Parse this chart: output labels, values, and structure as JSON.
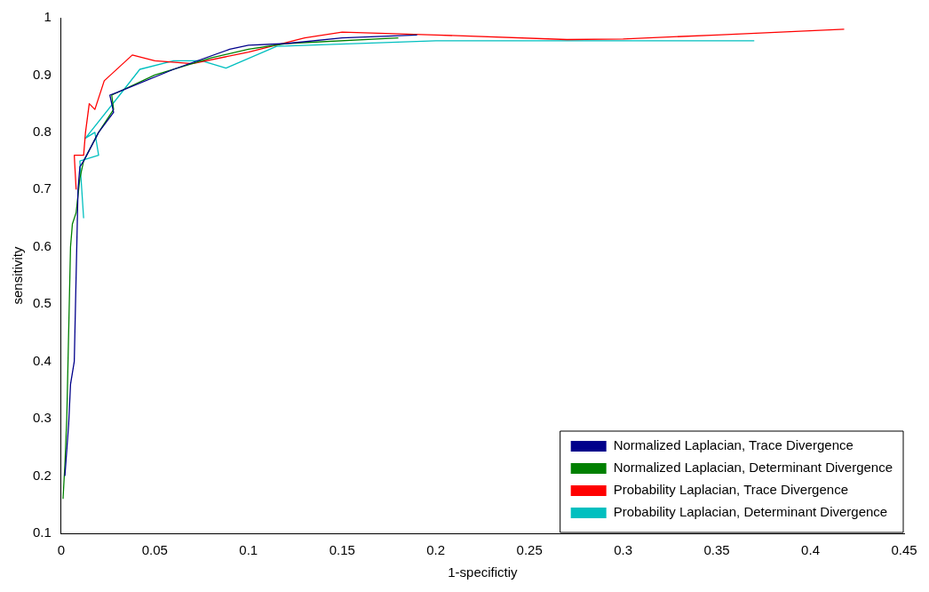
{
  "chart_data": {
    "type": "line",
    "xlabel": "1-specifictiy",
    "ylabel": "sensitivity",
    "xlim": [
      0,
      0.45
    ],
    "ylim": [
      0.1,
      1
    ],
    "xticks": [
      0,
      0.05,
      0.1,
      0.15,
      0.2,
      0.25,
      0.3,
      0.35,
      0.4,
      0.45
    ],
    "yticks": [
      0.1,
      0.2,
      0.3,
      0.4,
      0.5,
      0.6,
      0.7,
      0.8,
      0.9,
      1
    ],
    "grid": false,
    "legend": "bottom right",
    "marker": "none",
    "line_style": "solid",
    "series": [
      {
        "name": "Normalized Laplacian, Trace Divergence",
        "color": "#00008b",
        "x": [
          0.002,
          0.004,
          0.005,
          0.007,
          0.009,
          0.01,
          0.012,
          0.02,
          0.028,
          0.026,
          0.03,
          0.06,
          0.09,
          0.1,
          0.12,
          0.15,
          0.19
        ],
        "values": [
          0.2,
          0.29,
          0.36,
          0.4,
          0.7,
          0.74,
          0.75,
          0.8,
          0.835,
          0.865,
          0.87,
          0.91,
          0.945,
          0.952,
          0.955,
          0.965,
          0.97
        ]
      },
      {
        "name": "Normalized Laplacian, Determinant Divergence",
        "color": "#008000",
        "x": [
          0.001,
          0.002,
          0.003,
          0.004,
          0.005,
          0.006,
          0.008,
          0.01,
          0.012,
          0.02,
          0.028,
          0.027,
          0.05,
          0.08,
          0.1,
          0.12,
          0.18
        ],
        "values": [
          0.16,
          0.22,
          0.3,
          0.45,
          0.6,
          0.64,
          0.66,
          0.72,
          0.75,
          0.8,
          0.84,
          0.865,
          0.9,
          0.93,
          0.945,
          0.955,
          0.965
        ]
      },
      {
        "name": "Probability Laplacian, Trace Divergence",
        "color": "#ff0000",
        "x": [
          0.008,
          0.007,
          0.012,
          0.013,
          0.015,
          0.018,
          0.023,
          0.038,
          0.05,
          0.07,
          0.1,
          0.13,
          0.15,
          0.2,
          0.27,
          0.3,
          0.35,
          0.418
        ],
        "values": [
          0.7,
          0.76,
          0.76,
          0.8,
          0.85,
          0.84,
          0.89,
          0.935,
          0.925,
          0.92,
          0.94,
          0.965,
          0.975,
          0.97,
          0.962,
          0.963,
          0.97,
          0.98
        ]
      },
      {
        "name": "Probability Laplacian, Determinant Divergence",
        "color": "#00bfbf",
        "x": [
          0.012,
          0.01,
          0.02,
          0.018,
          0.013,
          0.03,
          0.042,
          0.06,
          0.075,
          0.088,
          0.115,
          0.2,
          0.37
        ],
        "values": [
          0.65,
          0.75,
          0.76,
          0.8,
          0.79,
          0.86,
          0.91,
          0.925,
          0.925,
          0.912,
          0.95,
          0.96,
          0.96
        ]
      }
    ]
  }
}
